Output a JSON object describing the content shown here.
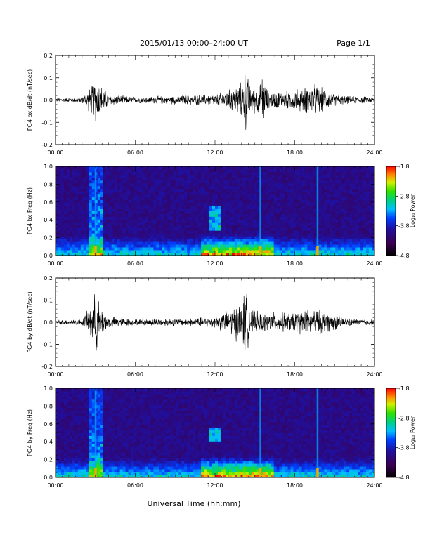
{
  "header": {
    "title": "2015/01/13  00:00–24:00 UT",
    "page": "Page 1/1"
  },
  "xaxis": {
    "label": "Universal Time (hh:mm)",
    "tick_labels": [
      "00:00",
      "06:00",
      "12:00",
      "18:00",
      "24:00"
    ],
    "tick_hours": [
      0,
      6,
      12,
      18,
      24
    ],
    "range_hours": [
      0,
      24
    ]
  },
  "colorbar": {
    "label": "Log₁₀ Power",
    "tick_labels": [
      "-1.8",
      "-2.8",
      "-3.8",
      "-4.8"
    ],
    "range": [
      -4.8,
      -1.8
    ]
  },
  "chart_data": [
    {
      "type": "line",
      "ylabel": "PG4 bx dB/dt (nT/sec)",
      "ylim": [
        -0.2,
        0.2
      ],
      "yticks": [
        -0.2,
        -0.1,
        0.0,
        0.1,
        0.2
      ],
      "ytick_labels": [
        "-0.2",
        "-0.1",
        "0.0",
        "0.1",
        "0.2"
      ],
      "x_hours": [
        0,
        2,
        2.8,
        3.1,
        3.5,
        4,
        6,
        8,
        10,
        12,
        13,
        14,
        14.3,
        14.7,
        15.4,
        15.6,
        16,
        17.5,
        18.5,
        19.5,
        21,
        22,
        24
      ],
      "amplitude": [
        0.01,
        0.015,
        0.08,
        0.12,
        0.07,
        0.03,
        0.015,
        0.02,
        0.025,
        0.03,
        0.05,
        0.09,
        0.16,
        0.06,
        0.08,
        0.14,
        0.04,
        0.05,
        0.06,
        0.08,
        0.03,
        0.02,
        0.015
      ]
    },
    {
      "type": "heatmap",
      "ylabel": "PG4 bx Freq (Hz)",
      "ylim": [
        0.0,
        1.0
      ],
      "yticks": [
        0.0,
        0.2,
        0.4,
        0.6,
        0.8,
        1.0
      ],
      "ytick_labels": [
        "0.0",
        "0.2",
        "0.4",
        "0.6",
        "0.8",
        "1.0"
      ],
      "zlim": [
        -4.8,
        -1.8
      ],
      "vertical_bands_hours": [
        3.0,
        15.4,
        19.7
      ],
      "features": [
        {
          "name": "broadband",
          "x_hours": [
            2.6,
            3.6
          ],
          "max_freq": 1.0
        },
        {
          "name": "pc1-band",
          "x_hours": [
            11.5,
            12.5
          ],
          "freq": [
            0.28,
            0.55
          ]
        },
        {
          "name": "low-freq-enhancement",
          "x_hours": [
            11,
            16.5
          ],
          "max_freq": 0.25
        }
      ]
    },
    {
      "type": "line",
      "ylabel": "PG4 by dB/dt (nT/sec)",
      "ylim": [
        -0.2,
        0.2
      ],
      "yticks": [
        -0.2,
        -0.1,
        0.0,
        0.1,
        0.2
      ],
      "ytick_labels": [
        "-0.2",
        "-0.1",
        "0.0",
        "0.1",
        "0.2"
      ],
      "x_hours": [
        0,
        2,
        2.8,
        3.0,
        3.4,
        4,
        6,
        8,
        10,
        12,
        13,
        14,
        14.3,
        14.7,
        15.4,
        16,
        17.5,
        19.5,
        21,
        22,
        24
      ],
      "amplitude": [
        0.01,
        0.015,
        0.1,
        0.16,
        0.08,
        0.03,
        0.015,
        0.02,
        0.02,
        0.03,
        0.06,
        0.11,
        0.17,
        0.06,
        0.05,
        0.05,
        0.05,
        0.07,
        0.04,
        0.02,
        0.015
      ]
    },
    {
      "type": "heatmap",
      "ylabel": "PG4 by Freq (Hz)",
      "ylim": [
        0.0,
        1.0
      ],
      "yticks": [
        0.0,
        0.2,
        0.4,
        0.6,
        0.8,
        1.0
      ],
      "ytick_labels": [
        "0.0",
        "0.2",
        "0.4",
        "0.6",
        "0.8",
        "1.0"
      ],
      "zlim": [
        -4.8,
        -1.8
      ],
      "vertical_bands_hours": [
        3.0,
        15.4,
        19.7
      ],
      "features": [
        {
          "name": "broadband",
          "x_hours": [
            2.6,
            3.6
          ],
          "max_freq": 1.0
        },
        {
          "name": "pc1-band",
          "x_hours": [
            11.6,
            12.4
          ],
          "freq": [
            0.4,
            0.55
          ]
        },
        {
          "name": "low-freq-enhancement",
          "x_hours": [
            11,
            16.5
          ],
          "max_freq": 0.25
        }
      ]
    }
  ]
}
